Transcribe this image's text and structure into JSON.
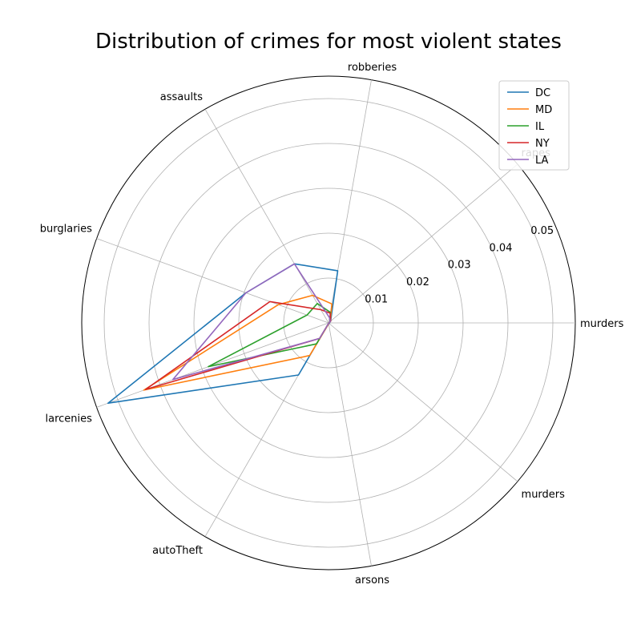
{
  "chart_data": {
    "type": "radar",
    "title": "Distribution of crimes for most violent states",
    "categories": [
      "murders",
      "rapes",
      "robberies",
      "assaults",
      "burglaries",
      "larcenies",
      "autoTheft",
      "arsons",
      "murders"
    ],
    "rlim": [
      0,
      0.055
    ],
    "r_ticks": [
      0.01,
      0.02,
      0.03,
      0.04,
      0.05
    ],
    "r_tick_labels": [
      "0.01",
      "0.02",
      "0.03",
      "0.04",
      "0.05"
    ],
    "grid": true,
    "legend_position": "top-right",
    "series": [
      {
        "name": "DC",
        "color": "#1f77b4",
        "values": [
          0.0002,
          0.0006,
          0.0118,
          0.0152,
          0.0196,
          0.0523,
          0.0134,
          0.0001,
          0.0002
        ]
      },
      {
        "name": "MD",
        "color": "#ff7f0e",
        "values": [
          0.0001,
          0.0005,
          0.0043,
          0.0071,
          0.0119,
          0.0438,
          0.0084,
          0.0002,
          0.0001
        ]
      },
      {
        "name": "IL",
        "color": "#2ca02c",
        "values": [
          0.0001,
          0.0005,
          0.0024,
          0.005,
          0.0051,
          0.0285,
          0.0054,
          0.0001,
          0.0001
        ]
      },
      {
        "name": "NY",
        "color": "#d62728",
        "values": [
          0.0001,
          0.0006,
          0.0022,
          0.0034,
          0.0139,
          0.0434,
          0.004,
          0.0001,
          0.0001
        ]
      },
      {
        "name": "LA",
        "color": "#9467bd",
        "values": [
          0.0001,
          0.0005,
          0.0012,
          0.0152,
          0.0196,
          0.0369,
          0.004,
          0.0001,
          0.0001
        ]
      }
    ]
  }
}
